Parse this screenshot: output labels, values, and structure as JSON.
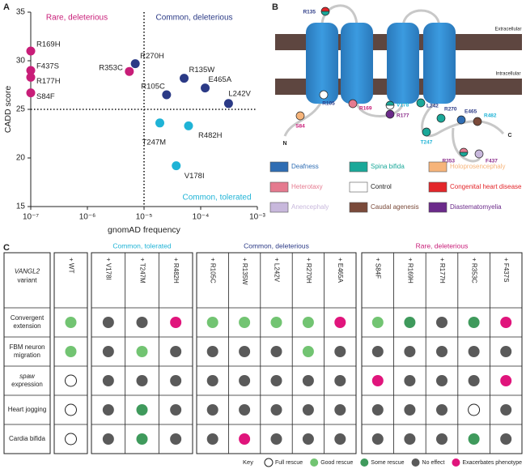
{
  "panels": [
    "A",
    "B",
    "C"
  ],
  "chart_data": {
    "type": "scatter",
    "xlabel": "gnomAD frequency",
    "ylabel": "CADD score",
    "xlog": true,
    "xlim": [
      1e-07,
      0.001
    ],
    "xticks": [
      {
        "value": 1e-07,
        "label": "10⁻⁷"
      },
      {
        "value": 1e-06,
        "label": "10⁻⁶"
      },
      {
        "value": 1e-05,
        "label": "10⁻⁵"
      },
      {
        "value": 0.0001,
        "label": "10⁻⁴"
      },
      {
        "value": 0.001,
        "label": "10⁻³"
      }
    ],
    "ylim": [
      15,
      35
    ],
    "yticks": [
      15,
      20,
      25,
      30,
      35
    ],
    "thresholds": {
      "x": 1e-05,
      "y": 25
    },
    "series": [
      {
        "name": "Rare, deleterious",
        "color": "#c81d78",
        "labels": [
          "R169H",
          "F437S",
          "R177H",
          "S84F",
          "R353C"
        ],
        "x": [
          1e-07,
          1e-07,
          1e-07,
          1e-07,
          5.5e-06
        ],
        "y": [
          31,
          29,
          28.3,
          26.7,
          28.9
        ]
      },
      {
        "name": "Common, deleterious",
        "color": "#2b3a86",
        "labels": [
          "R270H",
          "R135W",
          "R105C",
          "E465A",
          "L242V"
        ],
        "x": [
          7e-06,
          5.1e-05,
          2.5e-05,
          0.00012,
          0.00031
        ],
        "y": [
          29.7,
          28.2,
          26.5,
          27.2,
          25.6
        ]
      },
      {
        "name": "Common, tolerated",
        "color": "#1fb3d6",
        "labels": [
          "T247M",
          "R482H",
          "V178I"
        ],
        "x": [
          1.9e-05,
          6.1e-05,
          3.7e-05
        ],
        "y": [
          23.6,
          23.3,
          19.2
        ]
      }
    ]
  },
  "diagram": {
    "regions": [
      "Extracellular",
      "Intracellular"
    ],
    "termini": [
      "N",
      "C"
    ],
    "nodes": [
      {
        "label": "R135",
        "fill": [
          "#e3262a",
          "#1aa899"
        ],
        "label_color": "#2b3a86"
      },
      {
        "label": "R105",
        "fill": [
          "#ffffff"
        ],
        "label_color": "#2b3a86"
      },
      {
        "label": "S84",
        "fill": [
          "#f6b47a"
        ],
        "label_color": "#c81d78"
      },
      {
        "label": "R169",
        "fill": [
          "#e57a8f"
        ],
        "label_color": "#c81d78"
      },
      {
        "label": "V178",
        "fill": [
          "#1aa899",
          "#ffffff"
        ],
        "label_color": "#1fb3d6"
      },
      {
        "label": "R177",
        "fill": [
          "#6b2a8a"
        ],
        "label_color": "#8a2a8a"
      },
      {
        "label": "L242",
        "fill": [
          "#1aa899"
        ],
        "label_color": "#2b3a86"
      },
      {
        "label": "T247",
        "fill": [
          "#1aa899"
        ],
        "label_color": "#1fb3d6"
      },
      {
        "label": "R270",
        "fill": [
          "#1aa899"
        ],
        "label_color": "#2b3a86"
      },
      {
        "label": "E465",
        "fill": [
          "#2f6db3"
        ],
        "label_color": "#2b3a86"
      },
      {
        "label": "R482",
        "fill": [
          "#7a4a3a"
        ],
        "label_color": "#1fb3d6"
      },
      {
        "label": "R353",
        "fill": [
          "#e57a8f",
          "#1aa899"
        ],
        "label_color": "#8a2a8a"
      },
      {
        "label": "F437",
        "fill": [
          "#c8b8dc"
        ],
        "label_color": "#8a2a8a"
      }
    ],
    "legend": [
      {
        "label": "Deafness",
        "color": "#2f6db3"
      },
      {
        "label": "Spina bifida",
        "color": "#1aa899"
      },
      {
        "label": "Holoprosencephaly",
        "color": "#f6b47a"
      },
      {
        "label": "Heterotaxy",
        "color": "#e57a8f"
      },
      {
        "label": "Control",
        "color": "#ffffff"
      },
      {
        "label": "Congenital heart disease",
        "color": "#e3262a"
      },
      {
        "label": "Anencephaly",
        "color": "#c8b8dc"
      },
      {
        "label": "Caudal agenesis",
        "color": "#7a4a3a"
      },
      {
        "label": "Diastematomyelia",
        "color": "#6b2a8a"
      }
    ]
  },
  "table": {
    "header_label": [
      "VANGL2",
      "variant"
    ],
    "italic_words": [
      "VANGL2",
      "spaw"
    ],
    "control_column": "+ WT",
    "groups": [
      {
        "name": "Common, tolerated",
        "color": "#1fb3d6",
        "columns": [
          "+ V178I",
          "+ T247M",
          "+ R482H"
        ]
      },
      {
        "name": "Common, deleterious",
        "color": "#2b3a86",
        "columns": [
          "+ R105C",
          "+ R135W",
          "+ L242V",
          "+ R270H",
          "+ E465A"
        ]
      },
      {
        "name": "Rare, deleterious",
        "color": "#c81d78",
        "columns": [
          "+ S84F",
          "+ R169H",
          "+ R177H",
          "+ R353C",
          "+ F437S"
        ]
      }
    ],
    "rows": [
      {
        "label": [
          "Convergent",
          "extension"
        ],
        "cells": [
          "Good rescue",
          "No effect",
          "No effect",
          "Exacerbates phenotype",
          "Good rescue",
          "Good rescue",
          "Good rescue",
          "Good rescue",
          "Exacerbates phenotype",
          "Good rescue",
          "Some rescue",
          "No effect",
          "Some rescue",
          "Exacerbates phenotype"
        ]
      },
      {
        "label": [
          "FBM neuron",
          "migration"
        ],
        "cells": [
          "Good rescue",
          "No effect",
          "Good rescue",
          "No effect",
          "No effect",
          "No effect",
          "No effect",
          "Good rescue",
          "No effect",
          "No effect",
          "No effect",
          "No effect",
          "No effect",
          "No effect"
        ]
      },
      {
        "label": [
          "spaw",
          "expression"
        ],
        "cells": [
          "Full rescue",
          "No effect",
          "No effect",
          "No effect",
          "No effect",
          "No effect",
          "No effect",
          "No effect",
          "No effect",
          "Exacerbates phenotype",
          "No effect",
          "No effect",
          "No effect",
          "Exacerbates phenotype"
        ]
      },
      {
        "label": [
          "Heart jogging"
        ],
        "cells": [
          "Full rescue",
          "No effect",
          "Some rescue",
          "No effect",
          "No effect",
          "No effect",
          "No effect",
          "No effect",
          "No effect",
          "No effect",
          "No effect",
          "No effect",
          "Full rescue",
          "No effect"
        ]
      },
      {
        "label": [
          "Cardia bifida"
        ],
        "cells": [
          "Full rescue",
          "No effect",
          "Some rescue",
          "No effect",
          "No effect",
          "Exacerbates phenotype",
          "No effect",
          "No effect",
          "No effect",
          "No effect",
          "No effect",
          "No effect",
          "Some rescue",
          "No effect"
        ]
      }
    ],
    "key": {
      "title": "Key",
      "items": [
        {
          "label": "Full rescue",
          "color": "#ffffff"
        },
        {
          "label": "Good rescue",
          "color": "#72c472"
        },
        {
          "label": "Some rescue",
          "color": "#3f9a5c"
        },
        {
          "label": "No effect",
          "color": "#5a5a5a"
        },
        {
          "label": "Exacerbates phenotype",
          "color": "#e0157c"
        }
      ]
    }
  }
}
